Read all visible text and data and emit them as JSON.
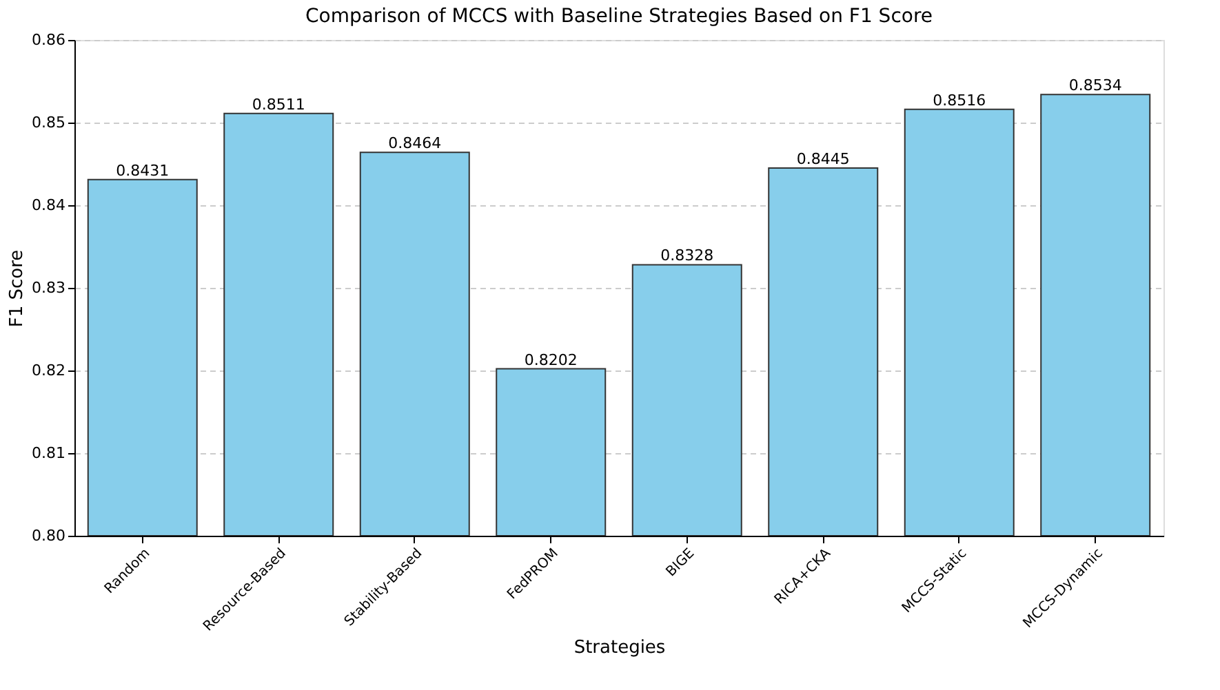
{
  "chart_data": {
    "type": "bar",
    "title": "Comparison of MCCS with Baseline Strategies Based on F1 Score",
    "xlabel": "Strategies",
    "ylabel": "F1 Score",
    "categories": [
      "Random",
      "Resource-Based",
      "Stability-Based",
      "FedPROM",
      "BIGE",
      "RICA+CKA",
      "MCCS-Static",
      "MCCS-Dynamic"
    ],
    "values": [
      0.8431,
      0.8511,
      0.8464,
      0.8202,
      0.8328,
      0.8445,
      0.8516,
      0.8534
    ],
    "color": "#87ceeb",
    "ylim": [
      0.8,
      0.86
    ],
    "yticks": [
      {
        "value": 0.8,
        "label": "0.80"
      },
      {
        "value": 0.81,
        "label": "0.81"
      },
      {
        "value": 0.82,
        "label": "0.82"
      },
      {
        "value": 0.83,
        "label": "0.83"
      },
      {
        "value": 0.84,
        "label": "0.84"
      },
      {
        "value": 0.85,
        "label": "0.85"
      },
      {
        "value": 0.86,
        "label": "0.86"
      }
    ],
    "grid": "y",
    "data_labels": true
  }
}
